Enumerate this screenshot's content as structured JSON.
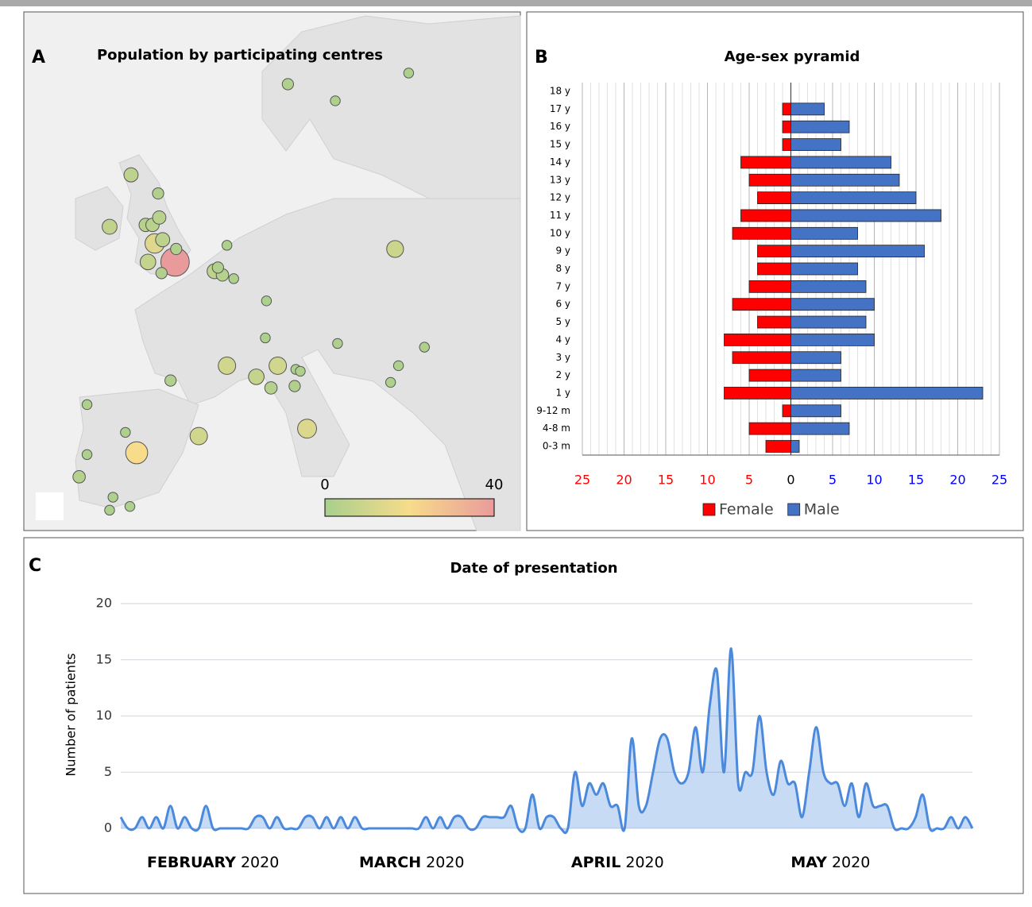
{
  "chart_data": [
    {
      "type": "map",
      "panel": "A",
      "title": "Population by participating centres",
      "lonlim": [
        -12,
        32
      ],
      "latlim": [
        35,
        63
      ],
      "points": [
        {
          "lon": 11.4,
          "lat": 59.1,
          "value": 2
        },
        {
          "lon": 22.1,
          "lat": 59.7,
          "value": 1
        },
        {
          "lon": 15.6,
          "lat": 58.2,
          "value": 1
        },
        {
          "lon": -2.5,
          "lat": 54.2,
          "value": 5
        },
        {
          "lon": -0.1,
          "lat": 53.2,
          "value": 2
        },
        {
          "lon": -4.4,
          "lat": 51.4,
          "value": 6
        },
        {
          "lon": -1.2,
          "lat": 51.5,
          "value": 4
        },
        {
          "lon": -0.6,
          "lat": 51.5,
          "value": 4
        },
        {
          "lon": 0.0,
          "lat": 51.9,
          "value": 4
        },
        {
          "lon": -0.4,
          "lat": 50.5,
          "value": 14
        },
        {
          "lon": 0.3,
          "lat": 50.7,
          "value": 5
        },
        {
          "lon": -1.0,
          "lat": 49.5,
          "value": 7
        },
        {
          "lon": 0.2,
          "lat": 48.9,
          "value": 2
        },
        {
          "lon": 1.5,
          "lat": 50.2,
          "value": 2
        },
        {
          "lon": 1.4,
          "lat": 49.5,
          "value": 40
        },
        {
          "lon": 6.0,
          "lat": 50.4,
          "value": 1
        },
        {
          "lon": 4.9,
          "lat": 49.0,
          "value": 6
        },
        {
          "lon": 5.6,
          "lat": 48.8,
          "value": 3
        },
        {
          "lon": 6.6,
          "lat": 48.6,
          "value": 1
        },
        {
          "lon": 5.2,
          "lat": 49.2,
          "value": 2
        },
        {
          "lon": 20.9,
          "lat": 50.2,
          "value": 9
        },
        {
          "lon": 9.5,
          "lat": 47.4,
          "value": 1
        },
        {
          "lon": 9.4,
          "lat": 45.4,
          "value": 1
        },
        {
          "lon": 15.8,
          "lat": 45.1,
          "value": 1
        },
        {
          "lon": 23.5,
          "lat": 44.9,
          "value": 1
        },
        {
          "lon": 6.0,
          "lat": 43.9,
          "value": 10
        },
        {
          "lon": 8.6,
          "lat": 43.3,
          "value": 7
        },
        {
          "lon": 10.5,
          "lat": 43.9,
          "value": 10
        },
        {
          "lon": 9.9,
          "lat": 42.7,
          "value": 3
        },
        {
          "lon": 12.1,
          "lat": 43.7,
          "value": 1
        },
        {
          "lon": 12.5,
          "lat": 43.6,
          "value": 1
        },
        {
          "lon": 12.0,
          "lat": 42.8,
          "value": 2
        },
        {
          "lon": 21.2,
          "lat": 43.9,
          "value": 1
        },
        {
          "lon": 20.5,
          "lat": 43.0,
          "value": 1
        },
        {
          "lon": 1.0,
          "lat": 43.1,
          "value": 2
        },
        {
          "lon": -6.4,
          "lat": 41.8,
          "value": 1
        },
        {
          "lon": 3.5,
          "lat": 40.1,
          "value": 10
        },
        {
          "lon": -3.0,
          "lat": 40.3,
          "value": 1
        },
        {
          "lon": 13.1,
          "lat": 40.5,
          "value": 13
        },
        {
          "lon": -2.0,
          "lat": 39.2,
          "value": 20
        },
        {
          "lon": -6.4,
          "lat": 39.1,
          "value": 1
        },
        {
          "lon": -7.1,
          "lat": 37.9,
          "value": 3
        },
        {
          "lon": -4.1,
          "lat": 36.8,
          "value": 1
        },
        {
          "lon": -4.4,
          "lat": 36.1,
          "value": 1
        },
        {
          "lon": -2.6,
          "lat": 36.3,
          "value": 1
        }
      ],
      "colorbar": {
        "lim": [
          0,
          40
        ],
        "ticks": [
          0,
          40
        ],
        "colors": [
          "#a9cf8d",
          "#f6dc8b",
          "#e99b9b"
        ]
      }
    },
    {
      "type": "pyramid",
      "panel": "B",
      "title": "Age-sex pyramid",
      "categories": [
        "0-3 m",
        "4-8 m",
        "9-12 m",
        "1 y",
        "2 y",
        "3 y",
        "4 y",
        "5 y",
        "6 y",
        "7 y",
        "8 y",
        "9 y",
        "10 y",
        "11 y",
        "12 y",
        "13 y",
        "14 y",
        "15 y",
        "16 y",
        "17 y",
        "18 y"
      ],
      "series": [
        {
          "name": "Female",
          "color": "#ff0000",
          "values": [
            -3,
            -5,
            -1,
            -8,
            -5,
            -7,
            -8,
            -4,
            -7,
            -5,
            -4,
            -4,
            -7,
            -6,
            -4,
            -5,
            -6,
            -1,
            -1,
            -1,
            0
          ]
        },
        {
          "name": "Male",
          "color": "#4472c4",
          "values": [
            1,
            7,
            6,
            23,
            6,
            6,
            10,
            9,
            10,
            9,
            8,
            16,
            8,
            18,
            15,
            13,
            12,
            6,
            7,
            4,
            0
          ]
        }
      ],
      "xlim": [
        -25,
        25
      ],
      "xticks": [
        {
          "value": -25,
          "label": "25"
        },
        {
          "value": -20,
          "label": "20"
        },
        {
          "value": -15,
          "label": "15"
        },
        {
          "value": -10,
          "label": "10"
        },
        {
          "value": -5,
          "label": "5"
        },
        0,
        5,
        10,
        15,
        20,
        25
      ],
      "xtick_label_colors": {
        "negative": "#ff0000",
        "zero": "#000000",
        "positive": "#0000ff"
      },
      "minor_grid_step": 1,
      "grid": true,
      "legend": "bottom"
    },
    {
      "type": "area",
      "panel": "C",
      "title": "Date of presentation",
      "ylabel": "Number of patients",
      "color": "#4a89dc",
      "values": [
        1,
        0,
        0,
        1,
        0,
        1,
        0,
        2,
        0,
        1,
        0,
        0,
        2,
        0,
        0,
        0,
        0,
        0,
        0,
        1,
        1,
        0,
        1,
        0,
        0,
        0,
        1,
        1,
        0,
        1,
        0,
        1,
        0,
        1,
        0,
        0,
        0,
        0,
        0,
        0,
        0,
        0,
        0,
        1,
        0,
        1,
        0,
        1,
        1,
        0,
        0,
        1,
        1,
        1,
        1,
        2,
        0,
        0,
        3,
        0,
        1,
        1,
        0,
        0,
        5,
        2,
        4,
        3,
        4,
        2,
        2,
        0,
        8,
        2,
        2,
        5,
        8,
        8,
        5,
        4,
        5,
        9,
        5,
        11,
        14,
        5,
        16,
        4,
        5,
        5,
        10,
        5,
        3,
        6,
        4,
        4,
        1,
        5,
        9,
        5,
        4,
        4,
        2,
        4,
        1,
        4,
        2,
        2,
        2,
        0,
        0,
        0,
        1,
        3,
        0,
        0,
        0,
        1,
        0,
        1,
        0
      ],
      "xlim": [
        0,
        120
      ],
      "xticks": [
        {
          "value": 13,
          "label": "FEBRUARY 2020"
        },
        {
          "value": 41,
          "label": "MARCH 2020"
        },
        {
          "value": 70,
          "label": "APRIL 2020"
        },
        {
          "value": 100,
          "label": "MAY 2020"
        }
      ],
      "ylim": [
        0,
        20
      ],
      "yticks": [
        0,
        5,
        10,
        15,
        20
      ],
      "grid": true
    }
  ]
}
